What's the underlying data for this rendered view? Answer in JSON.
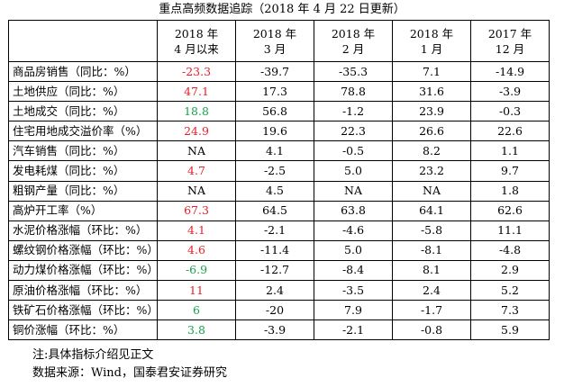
{
  "title": "重点高频数据追踪（2018 年 4 月 22 日更新）",
  "columns": [
    {
      "line1": "2018 年",
      "line2": "4 月以来"
    },
    {
      "line1": "2018 年",
      "line2": "3 月"
    },
    {
      "line1": "2018 年",
      "line2": "2 月"
    },
    {
      "line1": "2018 年",
      "line2": "1 月"
    },
    {
      "line1": "2017 年",
      "line2": "12 月"
    }
  ],
  "rows": [
    {
      "label": "商品房销售（同比：%）",
      "values": [
        "-23.3",
        "-39.7",
        "-35.3",
        "7.1",
        "-14.9"
      ],
      "first_color": "red"
    },
    {
      "label": "土地供应（同比：%）",
      "values": [
        "47.1",
        "17.3",
        "78.8",
        "31.6",
        "-3.9"
      ],
      "first_color": "red"
    },
    {
      "label": "土地成交（同比：%）",
      "values": [
        "18.8",
        "56.8",
        "-1.2",
        "23.9",
        "-0.3"
      ],
      "first_color": "green"
    },
    {
      "label": "住宅用地成交溢价率（%）",
      "values": [
        "24.9",
        "19.6",
        "22.3",
        "26.6",
        "22.6"
      ],
      "first_color": "red"
    },
    {
      "label": "汽车销售（同比：%）",
      "values": [
        "NA",
        "4.1",
        "-0.5",
        "8.2",
        "1.1"
      ],
      "first_color": "black"
    },
    {
      "label": "发电耗煤（同比：%）",
      "values": [
        "4.7",
        "-2.5",
        "5.0",
        "23.2",
        "9.7"
      ],
      "first_color": "red"
    },
    {
      "label": "粗钢产量（同比：%）",
      "values": [
        "NA",
        "4.5",
        "NA",
        "NA",
        "1.8"
      ],
      "first_color": "black"
    },
    {
      "label": "高炉开工率（%）",
      "values": [
        "67.3",
        "64.5",
        "63.8",
        "64.1",
        "62.6"
      ],
      "first_color": "red"
    },
    {
      "label": "水泥价格涨幅（环比：%）",
      "values": [
        "4.1",
        "-2.1",
        "-4.6",
        "-5.8",
        "11.1"
      ],
      "first_color": "red"
    },
    {
      "label": "螺纹钢价格涨幅（环比：%）",
      "values": [
        "4.6",
        "-11.4",
        "5.0",
        "-8.1",
        "-4.8"
      ],
      "first_color": "red"
    },
    {
      "label": "动力煤价格涨幅（环比：%）",
      "values": [
        "-6.9",
        "-12.7",
        "-8.4",
        "8.1",
        "2.9"
      ],
      "first_color": "green"
    },
    {
      "label": "原油价格涨幅（环比：%）",
      "values": [
        "11",
        "2.4",
        "-3.5",
        "2.4",
        "5.2"
      ],
      "first_color": "red"
    },
    {
      "label": "铁矿石价格涨幅（环比：%）",
      "values": [
        "6",
        "-20",
        "7.9",
        "-1.7",
        "7.3"
      ],
      "first_color": "green"
    },
    {
      "label": "铜价涨幅（环比：%）",
      "values": [
        "3.8",
        "-3.9",
        "-2.1",
        "-0.8",
        "5.9"
      ],
      "first_color": "green"
    }
  ],
  "notes": {
    "note1": "注:具体指标介绍见正文",
    "note2": "数据来源：Wind，国泰君安证券研究"
  },
  "colors": {
    "red": "#e8202a",
    "green": "#16a34a",
    "black": "#000000"
  }
}
